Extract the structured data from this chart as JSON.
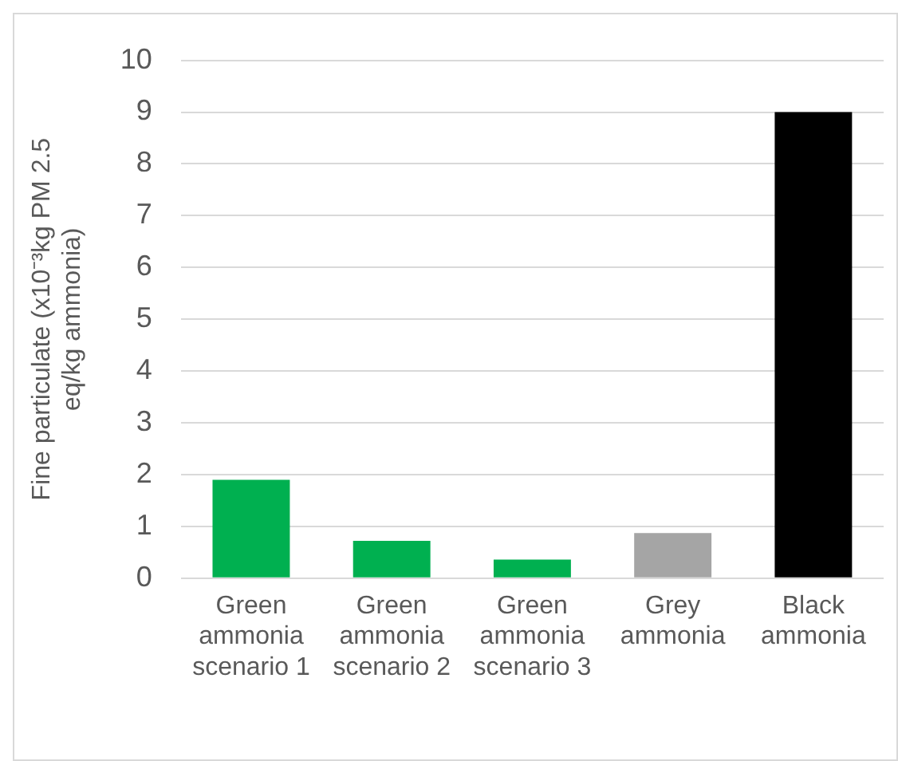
{
  "chart_data": {
    "type": "bar",
    "ylabel": "Fine particulate (x10⁻³kg PM 2.5 eq/kg ammonia)",
    "categories": [
      "Green ammonia scenario 1",
      "Green ammonia scenario 2",
      "Green ammonia scenario 3",
      "Grey ammonia",
      "Black ammonia"
    ],
    "values": [
      1.9,
      0.72,
      0.36,
      0.87,
      9.0
    ],
    "colors": [
      "#00b050",
      "#00b050",
      "#00b050",
      "#a5a5a5",
      "#000000"
    ],
    "ylim": [
      0,
      10
    ],
    "yticks": [
      0,
      1,
      2,
      3,
      4,
      5,
      6,
      7,
      8,
      9,
      10
    ],
    "grid": "y",
    "legend": false
  }
}
